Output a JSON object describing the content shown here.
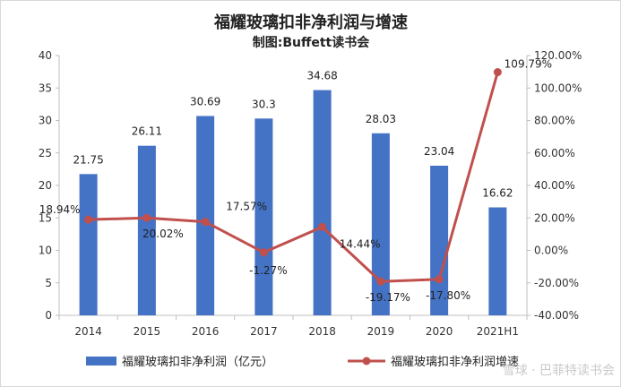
{
  "chart_data": {
    "type": "bar+line",
    "title": "福耀玻璃扣非净利润与增速",
    "subtitle": "制图:Buffett读书会",
    "categories": [
      "2014",
      "2015",
      "2016",
      "2017",
      "2018",
      "2019",
      "2020",
      "2021H1"
    ],
    "series": [
      {
        "name": "福耀玻璃扣非净利润（亿元）",
        "type": "bar",
        "axis": "left",
        "color": "#4472c4",
        "values": [
          21.75,
          26.11,
          30.69,
          30.3,
          34.68,
          28.03,
          23.04,
          16.62
        ],
        "labels": [
          "21.75",
          "26.11",
          "30.69",
          "30.3",
          "34.68",
          "28.03",
          "23.04",
          "16.62"
        ]
      },
      {
        "name": "福耀玻璃扣非净利润增速",
        "type": "line",
        "axis": "right",
        "color": "#c0504d",
        "values": [
          18.94,
          20.02,
          17.57,
          -1.27,
          14.44,
          -19.17,
          -17.8,
          109.79
        ],
        "labels": [
          "18.94%",
          "20.02%",
          "17.57%",
          "-1.27%",
          "14.44%",
          "-19.17%",
          "-17.80%",
          "109.79%"
        ]
      }
    ],
    "y_left": {
      "min": 0,
      "max": 40,
      "step": 5,
      "ticks": [
        "0",
        "5",
        "10",
        "15",
        "20",
        "25",
        "30",
        "35",
        "40"
      ]
    },
    "y_right": {
      "min": -40,
      "max": 120,
      "step": 20,
      "ticks": [
        "-40.00%",
        "-20.00%",
        "0.00%",
        "20.00%",
        "40.00%",
        "60.00%",
        "80.00%",
        "100.00%",
        "120.00%"
      ]
    },
    "grid": false,
    "legend": "bottom"
  },
  "watermark": "雪球 · 巴菲特读书会",
  "colors": {
    "bar": "#4472c4",
    "line": "#c0504d",
    "axis": "#bfbfbf"
  }
}
